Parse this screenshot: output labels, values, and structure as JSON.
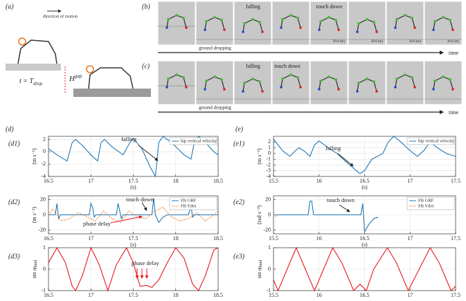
{
  "schematic": {
    "label": "(a)",
    "direction": "direction of motion",
    "time_eq": "t = T",
    "time_sub": "drop",
    "gap": "H",
    "gap_sup": "gap"
  },
  "snapshots": [
    {
      "label": "(b)",
      "dropping": "ground dropping",
      "falling": "falling",
      "touchdown": "touch down",
      "scale": "30.0 (m)",
      "axis": "time"
    },
    {
      "label": "(c)",
      "dropping": "ground dropping",
      "falling": "falling",
      "touchdown": "touch down",
      "axis": "time"
    }
  ],
  "section_labels": [
    "(d)",
    "(e)"
  ],
  "chart_data": [
    {
      "type": "line",
      "label": "(d1)",
      "ylabel": "(m s⁻¹)",
      "xlabel": "(s)",
      "grid": true,
      "legend": "upper right",
      "xlim": [
        16.5,
        18.5
      ],
      "xticks": [
        16.5,
        17,
        17.5,
        18,
        18.5
      ],
      "ylim": [
        -4,
        2.5
      ],
      "yticks": [
        -4,
        -2,
        0,
        2
      ],
      "annotations": [
        {
          "text": "falling",
          "color": "#222"
        }
      ],
      "series": [
        {
          "name": "hip vertical velocity",
          "color": "#1f77b4",
          "x": [
            16.5,
            16.6,
            16.72,
            16.78,
            16.82,
            16.9,
            17.0,
            17.08,
            17.12,
            17.16,
            17.25,
            17.38,
            17.46,
            17.5,
            17.6,
            17.7,
            17.76,
            17.8,
            17.85,
            17.95,
            18.1,
            18.18,
            18.22,
            18.27,
            18.35,
            18.45,
            18.5
          ],
          "values": [
            0.5,
            -0.5,
            -1.5,
            1.5,
            2,
            1,
            -0.5,
            -1.5,
            1.5,
            2,
            0.8,
            -0.5,
            1.5,
            2.2,
            0.5,
            -2.5,
            -4,
            1.5,
            2.5,
            1.5,
            -0.5,
            -1.2,
            1.5,
            2.5,
            1.5,
            0,
            -0.5
          ]
        }
      ]
    },
    {
      "type": "line",
      "label": "(d2)",
      "ylabel": "(m s⁻¹)",
      "xlabel": "(s)",
      "grid": true,
      "legend": "upper right",
      "xlim": [
        16.5,
        18.5
      ],
      "xticks": [
        16.5,
        17,
        17.5,
        18,
        18.5
      ],
      "ylim": [
        -25,
        25
      ],
      "yticks": [
        -20,
        0,
        20
      ],
      "annotations": [
        {
          "text": "touch down",
          "color": "#222"
        },
        {
          "text": "phase delay",
          "color": "#e8141c"
        }
      ],
      "series": [
        {
          "name": "FB GRF",
          "color": "#1f77b4",
          "style": "solid",
          "x": [
            16.5,
            16.58,
            16.6,
            16.62,
            16.64,
            16.98,
            17.0,
            17.02,
            17.04,
            17.06,
            17.3,
            17.32,
            17.34,
            17.36,
            17.38,
            17.72,
            17.74,
            17.76,
            17.8,
            17.85,
            17.9,
            18.15,
            18.18,
            18.2,
            18.22,
            18.5
          ],
          "values": [
            0,
            0,
            15,
            -5,
            0,
            0,
            15,
            10,
            -3,
            0,
            0,
            15,
            5,
            -5,
            0,
            0,
            22,
            0,
            -10,
            -3,
            0,
            0,
            12,
            -3,
            0,
            0
          ]
        },
        {
          "name": "FB Ydot",
          "color": "#e8741c",
          "style": "dotted",
          "x": [
            16.5,
            16.55,
            16.65,
            16.75,
            16.85,
            16.95,
            17.05,
            17.15,
            17.25,
            17.35,
            17.45,
            17.55,
            17.65,
            17.75,
            17.85,
            17.95,
            18.05,
            18.15,
            18.25,
            18.35,
            18.45,
            18.5
          ],
          "values": [
            0,
            8,
            -8,
            -5,
            3,
            -2,
            -8,
            5,
            -5,
            -10,
            5,
            -3,
            -5,
            5,
            10,
            -3,
            -8,
            -5,
            3,
            -8,
            0,
            5
          ]
        }
      ]
    },
    {
      "type": "line",
      "label": "(d3)",
      "ylabel": "sin φ",
      "ylabel_sub": "hind",
      "grid": true,
      "xlim": [
        16.5,
        18.5
      ],
      "xticks": [
        16.5,
        17,
        17.5,
        18,
        18.5
      ],
      "ylim": [
        -1,
        1
      ],
      "yticks": [
        -1,
        0,
        1
      ],
      "annotations": [
        {
          "text": "phase delay",
          "color": "#e8141c"
        }
      ],
      "series": [
        {
          "color": "#e8141c",
          "x": [
            16.5,
            16.6,
            16.7,
            16.78,
            16.82,
            16.9,
            17.0,
            17.1,
            17.2,
            17.3,
            17.42,
            17.5,
            17.58,
            17.65,
            17.72,
            17.8,
            17.9,
            18.0,
            18.1,
            18.2,
            18.27,
            18.35,
            18.45,
            18.5
          ],
          "values": [
            0.3,
            1,
            0.3,
            -0.8,
            -1,
            -0.3,
            1,
            0.2,
            -1,
            0.2,
            1,
            0.3,
            -0.8,
            -0.75,
            -0.85,
            -0.5,
            0.3,
            1,
            0.5,
            -0.7,
            -1,
            -0.3,
            0.9,
            1
          ]
        }
      ]
    },
    {
      "type": "line",
      "label": "(e1)",
      "ylabel": "(m s⁻¹)",
      "xlabel": "(s)",
      "grid": true,
      "legend": "upper right",
      "xlim": [
        15.5,
        17.5
      ],
      "xticks": [
        15.5,
        16,
        16.5,
        17,
        17.5
      ],
      "ylim": [
        -4,
        3
      ],
      "yticks": [
        -4,
        -3,
        -2,
        -1,
        0,
        1,
        2
      ],
      "annotations": [
        {
          "text": "falling",
          "color": "#222"
        }
      ],
      "series": [
        {
          "name": "hip vertical velocity",
          "color": "#1f77b4",
          "x": [
            15.5,
            15.6,
            15.68,
            15.74,
            15.78,
            15.85,
            15.9,
            15.95,
            16.0,
            16.1,
            16.2,
            16.3,
            16.45,
            16.5,
            16.58,
            16.7,
            16.76,
            16.82,
            16.9,
            17.0,
            17.08,
            17.15,
            17.22,
            17.3,
            17.4,
            17.5
          ],
          "values": [
            2.5,
            0.5,
            -0.5,
            0.5,
            1,
            0.3,
            -0.5,
            1.5,
            2.2,
            1,
            0,
            -1.5,
            -3.5,
            -3,
            -1,
            0,
            2,
            3,
            2,
            0.5,
            -0.5,
            0.5,
            2,
            1,
            0,
            -0.5
          ]
        }
      ]
    },
    {
      "type": "line",
      "label": "(e2)",
      "ylabel": "(rad s⁻¹)",
      "xlabel": "(s)",
      "grid": true,
      "legend": "upper right",
      "xlim": [
        15.5,
        17.5
      ],
      "xticks": [
        15.5,
        16,
        16.5,
        17,
        17.5
      ],
      "ylim": [
        -25,
        25
      ],
      "yticks": [
        -20,
        0,
        20
      ],
      "annotations": [
        {
          "text": "touch down",
          "color": "#222"
        }
      ],
      "series": [
        {
          "name": "FB GRF",
          "color": "#1f77b4",
          "style": "solid",
          "x": [
            15.5,
            15.88,
            15.9,
            15.92,
            15.94,
            16.46,
            16.48,
            16.5,
            16.55,
            16.6,
            16.65
          ],
          "values": [
            0,
            0,
            18,
            18,
            0,
            0,
            15,
            -22,
            -12,
            -5,
            -3
          ]
        },
        {
          "name": "FB Ydot",
          "color": "#e8741c",
          "style": "dotted",
          "x": [
            15.5,
            15.52,
            15.55
          ],
          "values": [
            0,
            -2,
            0
          ]
        }
      ]
    },
    {
      "type": "line",
      "label": "(e3)",
      "ylabel": "sin φ",
      "ylabel_sub": "hind",
      "grid": true,
      "xlim": [
        15.5,
        17.5
      ],
      "xticks": [
        15.5,
        16,
        16.5,
        17,
        17.5
      ],
      "ylim": [
        -1,
        1
      ],
      "yticks": [
        -1,
        0,
        1
      ],
      "series": [
        {
          "color": "#e8141c",
          "x": [
            15.5,
            15.55,
            15.65,
            15.75,
            15.85,
            15.95,
            16.05,
            16.15,
            16.25,
            16.38,
            16.45,
            16.52,
            16.6,
            16.75,
            16.85,
            16.98,
            17.1,
            17.22,
            17.32,
            17.45,
            17.5
          ],
          "values": [
            -0.5,
            -1,
            0,
            1,
            0,
            -1,
            0,
            1,
            0.3,
            -1,
            -0.7,
            -1,
            0,
            1,
            0.3,
            -1,
            0,
            1,
            0.3,
            -1,
            -0.8
          ]
        }
      ]
    }
  ]
}
